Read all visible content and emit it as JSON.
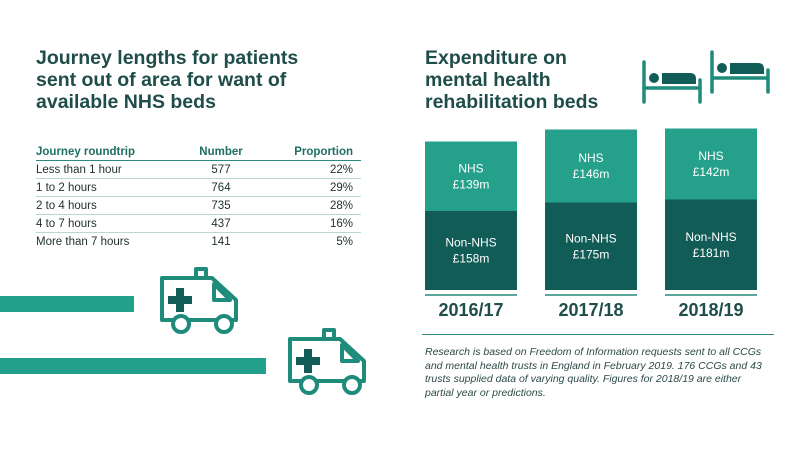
{
  "left": {
    "title": "Journey lengths for patients\nsent out of area for want of\navailable NHS beds",
    "table": {
      "headers": [
        "Journey roundtrip",
        "Number",
        "Proportion"
      ],
      "rows": [
        [
          "Less than 1 hour",
          "577",
          "22%"
        ],
        [
          "1 to 2 hours",
          "764",
          "29%"
        ],
        [
          "2 to 4 hours",
          "735",
          "28%"
        ],
        [
          "4 to 7 hours",
          "437",
          "16%"
        ],
        [
          "More than 7 hours",
          "141",
          "5%"
        ]
      ]
    }
  },
  "right": {
    "title": "Expenditure on\nmental health\nrehabilitation beds",
    "footnote": "Research is based on Freedom of Information requests sent to all CCGs and mental health trusts in England in February 2019. 176 CCGs and 43 trusts supplied data of varying quality. Figures for 2018/19 are either partial year or predictions."
  },
  "colors": {
    "nhs": "#25a08b",
    "non_nhs": "#125c57",
    "accent": "#23a08c",
    "text": "#1f4d49"
  },
  "icons": [
    "ambulance-icon",
    "hospital-bed-icon"
  ],
  "chart_data": [
    {
      "type": "table",
      "columns": [
        "Journey roundtrip",
        "Number",
        "Proportion"
      ],
      "rows": [
        [
          "Less than 1 hour",
          577,
          "22%"
        ],
        [
          "1 to 2 hours",
          764,
          "29%"
        ],
        [
          "2 to 4 hours",
          735,
          "28%"
        ],
        [
          "4 to 7 hours",
          437,
          "16%"
        ],
        [
          "More than 7 hours",
          141,
          "5%"
        ]
      ],
      "title": "Journey lengths for patients sent out of area for want of available NHS beds"
    },
    {
      "type": "bar",
      "stacked": true,
      "title": "Expenditure on mental health rehabilitation beds",
      "categories": [
        "2016/17",
        "2017/18",
        "2018/19"
      ],
      "series": [
        {
          "name": "Non-NHS",
          "values": [
            158,
            175,
            181
          ],
          "labels": [
            "£158m",
            "£175m",
            "£181m"
          ]
        },
        {
          "name": "NHS",
          "values": [
            139,
            146,
            142
          ],
          "labels": [
            "£139m",
            "£146m",
            "£142m"
          ]
        }
      ],
      "unit": "£m"
    }
  ]
}
